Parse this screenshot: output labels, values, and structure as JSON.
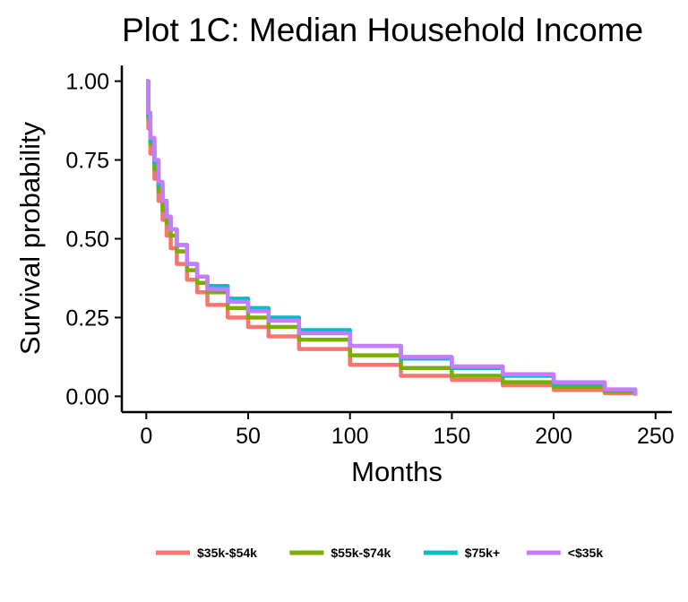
{
  "chart_data": {
    "type": "line",
    "title": "Plot 1C: Median Household Income",
    "xlabel": "Months",
    "ylabel": "Survival probability",
    "xlim": [
      -12,
      258
    ],
    "ylim": [
      -0.05,
      1.05
    ],
    "xticks": [
      0,
      50,
      100,
      150,
      200,
      250
    ],
    "yticks": [
      0,
      0.25,
      0.5,
      0.75,
      1.0
    ],
    "xtick_labels": [
      "0",
      "50",
      "100",
      "150",
      "200",
      "250"
    ],
    "ytick_labels": [
      "0.00",
      "0.25",
      "0.50",
      "0.75",
      "1.00"
    ],
    "grid": false,
    "legend_position": "bottom",
    "series": [
      {
        "name": "$35k-$54k",
        "color": "#F8766D",
        "x": [
          0,
          1,
          2,
          4,
          6,
          8,
          10,
          12,
          15,
          20,
          25,
          30,
          40,
          50,
          60,
          75,
          100,
          125,
          150,
          175,
          200,
          225,
          240
        ],
        "y": [
          1.0,
          0.85,
          0.77,
          0.69,
          0.62,
          0.56,
          0.51,
          0.47,
          0.42,
          0.37,
          0.33,
          0.29,
          0.25,
          0.22,
          0.19,
          0.15,
          0.1,
          0.065,
          0.052,
          0.035,
          0.02,
          0.01,
          0.002
        ]
      },
      {
        "name": "$55k-$74k",
        "color": "#7CAE00",
        "x": [
          0,
          1,
          2,
          4,
          6,
          8,
          10,
          12,
          15,
          20,
          25,
          30,
          40,
          50,
          60,
          75,
          100,
          125,
          150,
          175,
          200,
          225,
          240
        ],
        "y": [
          1.0,
          0.88,
          0.8,
          0.72,
          0.65,
          0.59,
          0.55,
          0.51,
          0.46,
          0.4,
          0.36,
          0.33,
          0.28,
          0.25,
          0.22,
          0.18,
          0.13,
          0.09,
          0.065,
          0.045,
          0.03,
          0.015,
          0.003
        ]
      },
      {
        "name": "$75k+",
        "color": "#00BFC4",
        "x": [
          0,
          1,
          2,
          4,
          6,
          8,
          10,
          12,
          15,
          20,
          25,
          30,
          40,
          50,
          60,
          75,
          100,
          125,
          150,
          175,
          200,
          225,
          240
        ],
        "y": [
          1.0,
          0.89,
          0.81,
          0.74,
          0.67,
          0.62,
          0.57,
          0.53,
          0.48,
          0.42,
          0.38,
          0.35,
          0.31,
          0.28,
          0.25,
          0.21,
          0.16,
          0.12,
          0.09,
          0.065,
          0.04,
          0.02,
          0.004
        ]
      },
      {
        "name": "<$35k",
        "color": "#C77CFF",
        "x": [
          0,
          1,
          2,
          4,
          6,
          8,
          10,
          12,
          15,
          20,
          25,
          30,
          40,
          50,
          60,
          75,
          100,
          125,
          150,
          175,
          200,
          225,
          240
        ],
        "y": [
          1.0,
          0.9,
          0.82,
          0.75,
          0.68,
          0.62,
          0.57,
          0.53,
          0.48,
          0.42,
          0.38,
          0.34,
          0.3,
          0.27,
          0.24,
          0.2,
          0.16,
          0.125,
          0.095,
          0.07,
          0.045,
          0.022,
          0.004
        ]
      }
    ]
  }
}
